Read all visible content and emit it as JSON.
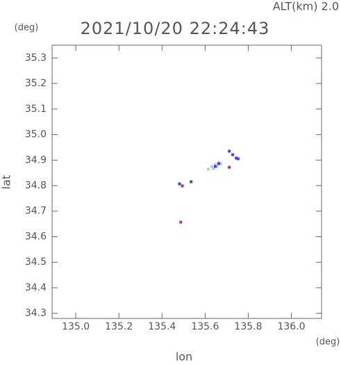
{
  "chart_data": {
    "type": "scatter",
    "title": "2021/10/20 22:24:43",
    "subtitle": "ALT(km) 2.0",
    "x_label": "lon",
    "y_label": "lat",
    "x_unit": "(deg)",
    "y_unit": "(deg)",
    "xlim": [
      134.89,
      136.14
    ],
    "ylim": [
      34.28,
      35.35
    ],
    "xticks": [
      {
        "value": 135.0,
        "label": "135.0"
      },
      {
        "value": 135.2,
        "label": "135.2"
      },
      {
        "value": 135.4,
        "label": "135.4"
      },
      {
        "value": 135.6,
        "label": "135.6"
      },
      {
        "value": 135.8,
        "label": "135.8"
      },
      {
        "value": 136.0,
        "label": "136.0"
      }
    ],
    "yticks": [
      {
        "value": 34.3,
        "label": "34.3"
      },
      {
        "value": 34.4,
        "label": "34.4"
      },
      {
        "value": 34.5,
        "label": "34.5"
      },
      {
        "value": 34.6,
        "label": "34.6"
      },
      {
        "value": 34.7,
        "label": "34.7"
      },
      {
        "value": 34.8,
        "label": "34.8"
      },
      {
        "value": 34.9,
        "label": "34.9"
      },
      {
        "value": 35.0,
        "label": "35.0"
      },
      {
        "value": 35.1,
        "label": "35.1"
      },
      {
        "value": 35.2,
        "label": "35.2"
      },
      {
        "value": 35.3,
        "label": "35.3"
      }
    ],
    "series": [
      {
        "color": "#b8c4f0",
        "x": [
          135.615,
          135.631,
          135.647,
          135.663,
          135.654,
          135.673,
          135.638
        ],
        "values": [
          34.864,
          34.875,
          34.883,
          34.891,
          34.875,
          34.886,
          34.867
        ]
      },
      {
        "color": "#3a48d8",
        "x": [
          135.663,
          135.647,
          135.712,
          135.728,
          135.744,
          135.753,
          135.535,
          135.481
        ],
        "values": [
          34.886,
          34.875,
          34.935,
          34.921,
          34.908,
          34.905,
          34.815,
          34.807
        ]
      },
      {
        "color": "#c0305a",
        "x": [
          135.712,
          135.494,
          135.487
        ],
        "values": [
          34.872,
          34.799,
          34.657
        ]
      }
    ]
  }
}
